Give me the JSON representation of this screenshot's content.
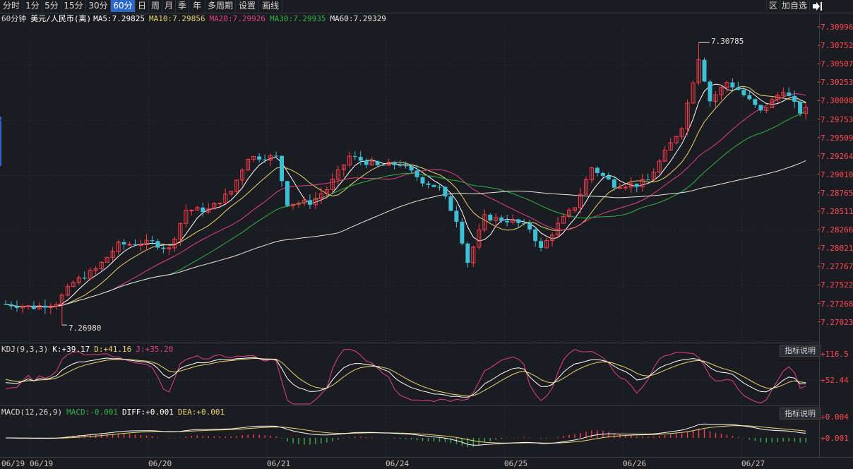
{
  "toolbar": {
    "tabs": [
      "分时",
      "1分",
      "5分",
      "15分",
      "30分",
      "60分",
      "日",
      "周",
      "月",
      "季",
      "年",
      "多周期",
      "设置",
      "画线"
    ],
    "active_tab": "60分",
    "right_buttons": [
      "区",
      "加自选"
    ]
  },
  "legend": {
    "period": "60分钟",
    "symbol": "美元/人民币(离)",
    "ma5_label": "MA5:",
    "ma5": "7.29825",
    "ma10_label": "MA10:",
    "ma10": "7.29856",
    "ma20_label": "MA20:",
    "ma20": "7.29926",
    "ma30_label": "MA30:",
    "ma30": "7.29935",
    "ma60_label": "MA60:",
    "ma60": "7.29329"
  },
  "price_axis": [
    "7.30996",
    "7.30752",
    "7.30507",
    "7.30253",
    "7.30008",
    "7.29753",
    "7.29509",
    "7.29264",
    "7.29010",
    "7.28765",
    "7.28511",
    "7.28266",
    "7.28021",
    "7.27767",
    "7.27522",
    "7.27268",
    "7.27023"
  ],
  "annotations": {
    "high": "7.30785",
    "low": "7.26980"
  },
  "kdj": {
    "name": "KDJ(9,3,3)",
    "k_label": "K:",
    "k": "+39.17",
    "d_label": "D:",
    "d": "+41.16",
    "j_label": "J:",
    "j": "+35.20",
    "axis": [
      "+116.5",
      "+52.44"
    ],
    "button": "指标说明"
  },
  "macd": {
    "name": "MACD(12,26,9)",
    "macd_label": "MACD:",
    "macd": "-0.001",
    "diff_label": "DIFF:",
    "diff": "+0.001",
    "dea_label": "DEA:",
    "dea": "+0.001",
    "axis": [
      "+0.004",
      "+0.001"
    ],
    "button": "指标说明"
  },
  "dates": [
    "06/19",
    "06/19",
    "06/20",
    "06/21",
    "06/24",
    "06/25",
    "06/26",
    "06/27"
  ],
  "colors": {
    "up": "#ff3d4d",
    "down": "#3dbfd6",
    "ma5": "#ffffff",
    "ma10": "#e8d570",
    "ma20": "#e0447e",
    "ma30": "#2fb34a",
    "ma60": "#e6e6e6",
    "k": "#ffffff",
    "d": "#e8d570",
    "j": "#e0447e"
  }
}
